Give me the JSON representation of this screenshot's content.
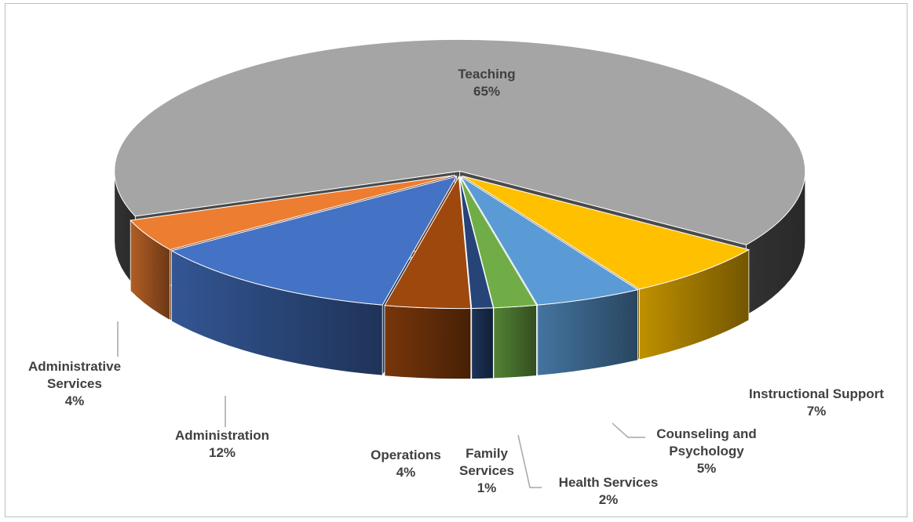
{
  "chart_data": {
    "type": "pie3d",
    "categories": [
      "Teaching",
      "Instructional Support",
      "Counseling and Psychology",
      "Health Services",
      "Family Services",
      "Operations",
      "Administration",
      "Administrative Services"
    ],
    "values": [
      65,
      7,
      5,
      2,
      1,
      4,
      12,
      4
    ],
    "value_labels": [
      "65%",
      "7%",
      "5%",
      "2%",
      "1%",
      "4%",
      "12%",
      "4%"
    ],
    "colors": [
      "#a5a5a5",
      "#ffc000",
      "#5b9bd5",
      "#70ad47",
      "#264478",
      "#9e480e",
      "#4472c4",
      "#ed7d31"
    ]
  }
}
